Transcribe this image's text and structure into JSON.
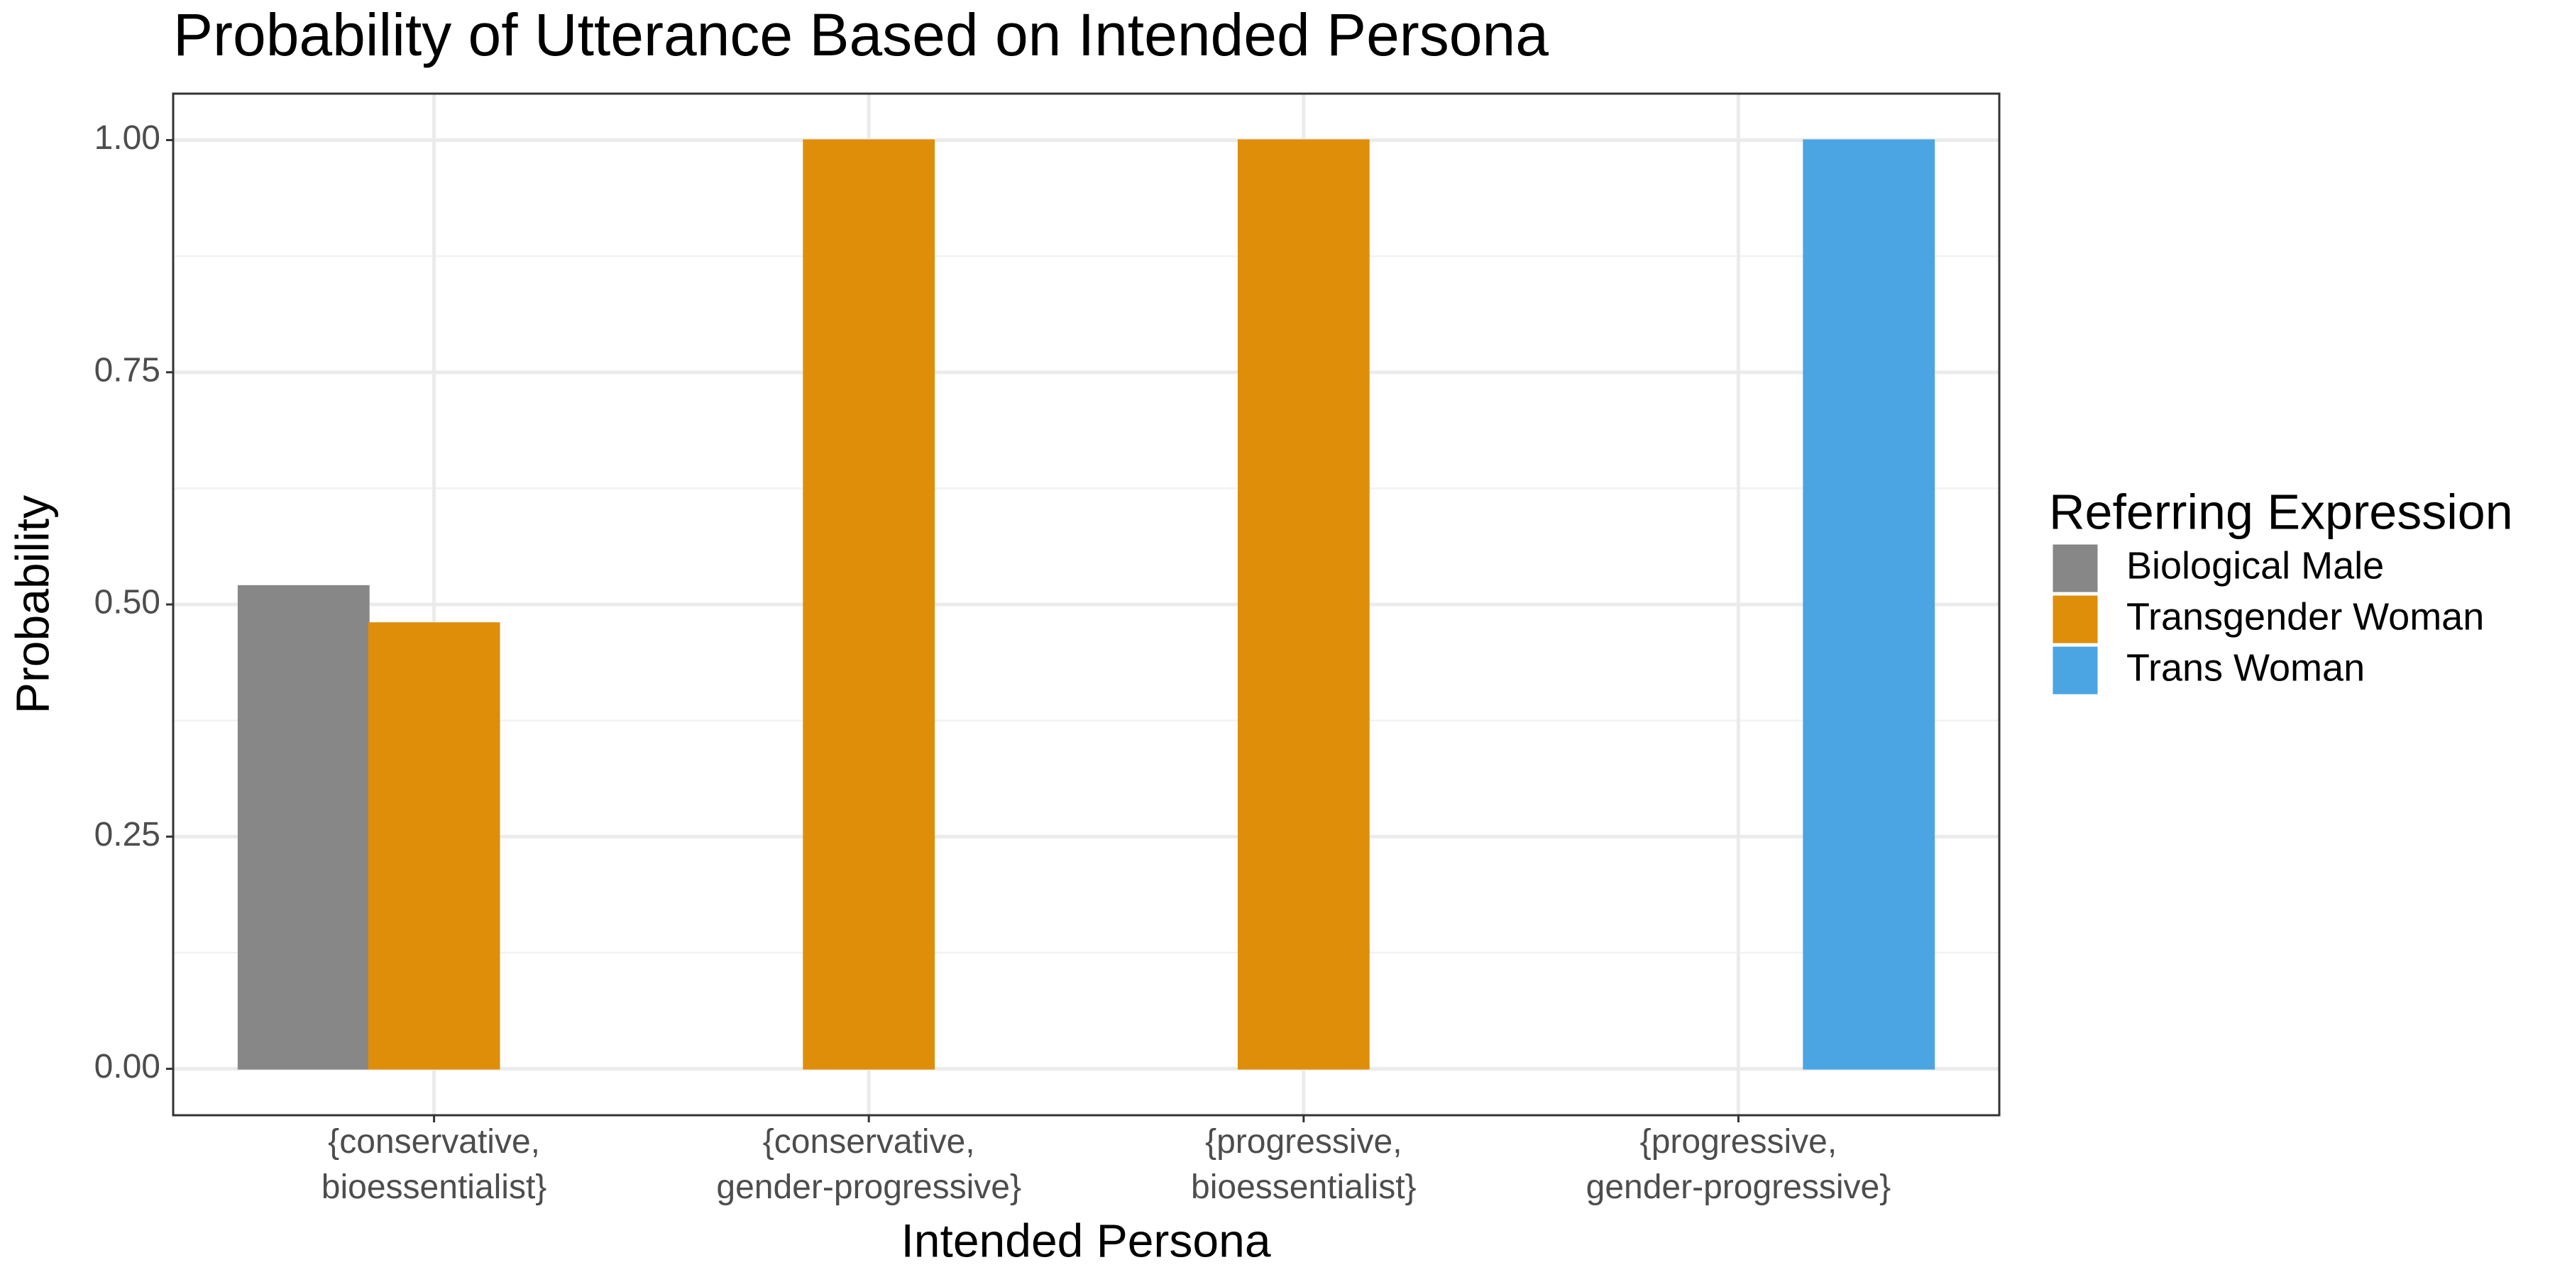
{
  "chart_data": {
    "type": "bar",
    "title": "Probability of Utterance Based on Intended Persona",
    "x_label": "Intended Persona",
    "y_label": "Probability",
    "legend_title": "Referring Expression",
    "legend_position": "right",
    "grid": true,
    "categories": [
      "{conservative,\nbioessentialist}",
      "{conservative,\ngender-progressive}",
      "{progressive,\nbioessentialist}",
      "{progressive,\ngender-progressive}"
    ],
    "series": [
      {
        "name": "Biological Male",
        "color": "#878787",
        "values": [
          0.52,
          null,
          null,
          null
        ]
      },
      {
        "name": "Transgender Woman",
        "color": "#df8e0a",
        "values": [
          0.48,
          1,
          1,
          0
        ]
      },
      {
        "name": "Trans Woman",
        "color": "#4aa5e2",
        "values": [
          null,
          null,
          null,
          1
        ]
      }
    ],
    "ylim": [
      -0.05,
      1.05
    ],
    "yticks": [
      {
        "value": 0,
        "label": "0.00"
      },
      {
        "value": 0.25,
        "label": "0.25"
      },
      {
        "value": 0.5,
        "label": "0.50"
      },
      {
        "value": 0.75,
        "label": "0.75"
      },
      {
        "value": 1,
        "label": "1.00"
      }
    ]
  }
}
